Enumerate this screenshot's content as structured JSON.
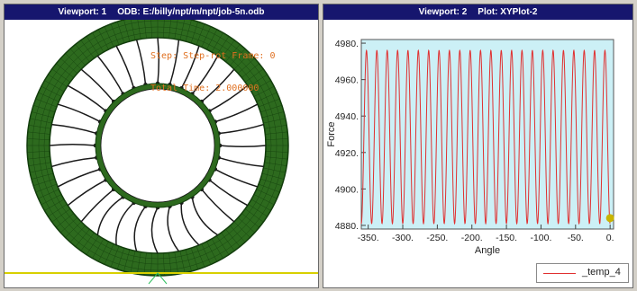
{
  "viewport1": {
    "title_name": "Viewport: 1",
    "title_odb": "ODB: E:/billy/npt/m/npt/job-5n.odb",
    "step_line": "Step: Step-rot Frame: 0",
    "time_line": "Total Time: 2.000000"
  },
  "viewport2": {
    "title_name": "Viewport: 2",
    "title_plot": "Plot: XYPlot-2",
    "legend_label": "_temp_4"
  },
  "colors": {
    "mesh": "#2d6a1e",
    "mesh_dark": "#123d0c",
    "plot_bg": "#ccf0f6",
    "curve": "#e03030",
    "marker": "#c8b400",
    "title_bar": "#16166e"
  },
  "chart_data": {
    "type": "line",
    "xlabel": "Angle",
    "ylabel": "Force",
    "xlim": [
      -360,
      5
    ],
    "ylim": [
      4878,
      4982
    ],
    "x_ticks": [
      -350,
      -300,
      -250,
      -200,
      -150,
      -100,
      -50,
      0
    ],
    "x_tick_labels": [
      "-350.",
      "-300.",
      "-250.",
      "-200.",
      "-150.",
      "-100.",
      "-50.",
      "0."
    ],
    "y_ticks": [
      4880,
      4900,
      4920,
      4940,
      4960,
      4980
    ],
    "y_tick_labels": [
      "4880.",
      "4900.",
      "4920.",
      "4940.",
      "4960.",
      "4980."
    ],
    "grid": false,
    "legend": "bottom-right",
    "series": [
      {
        "name": "_temp_4",
        "x_range": [
          -360,
          0
        ],
        "oscillations": 24,
        "min": 4881,
        "max": 4976
      }
    ],
    "marker_point": {
      "x": 0,
      "y": 4884
    }
  }
}
